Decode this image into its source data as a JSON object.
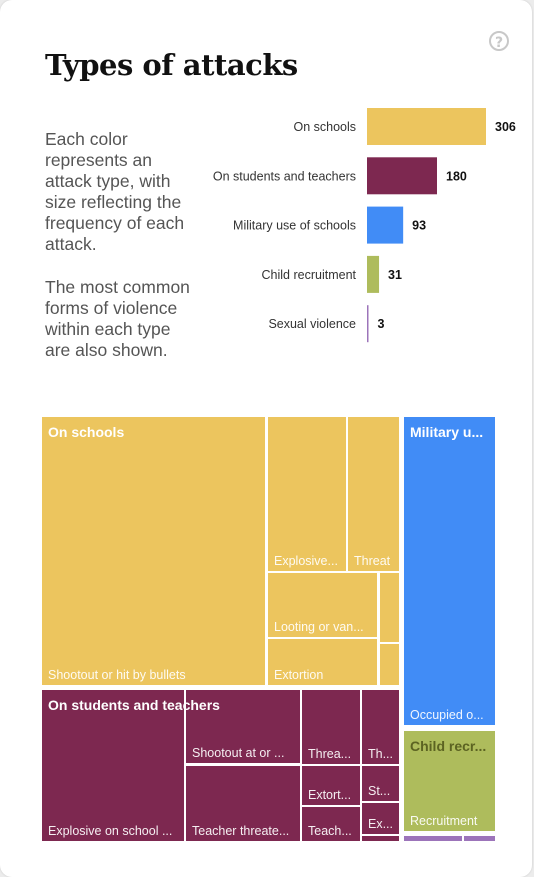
{
  "header": {
    "title": "Types of attacks",
    "help_icon": "question-circle-icon",
    "help_glyph": "?"
  },
  "description": {
    "paragraph1": "Each color represents an attack type, with size reflecting the frequency of each attack.",
    "paragraph2": "The most common forms of violence within each type are also shown."
  },
  "colors": {
    "on_schools": "#ecc55e",
    "on_students_and_teachers": "#7d2850",
    "military_use": "#418cf6",
    "child_recruitment": "#aebc5c",
    "sexual_violence": "#9c74ba"
  },
  "chart_data": [
    {
      "type": "bar",
      "orientation": "horizontal",
      "categories": [
        "On schools",
        "On students and teachers",
        "Military use of schools",
        "Child recruitment",
        "Sexual violence"
      ],
      "values": [
        306,
        180,
        93,
        31,
        3
      ],
      "data_labels": [
        "306",
        "180",
        "93",
        "31",
        "3"
      ]
    },
    {
      "type": "treemap",
      "groups": [
        {
          "name": "On schools",
          "children": [
            {
              "label": "Shootout or hit by bullets"
            },
            {
              "label": "Explosive..."
            },
            {
              "label": "Threat"
            },
            {
              "label": "Looting or van..."
            },
            {
              "label": "Extortion"
            },
            {
              "label": ""
            },
            {
              "label": ""
            },
            {
              "label": ""
            }
          ]
        },
        {
          "name": "On students and teachers",
          "children": [
            {
              "label": "Explosive on school ..."
            },
            {
              "label": "Shootout at or ..."
            },
            {
              "label": "Teacher threate..."
            },
            {
              "label": "Threa..."
            },
            {
              "label": "Extort..."
            },
            {
              "label": "Teach..."
            },
            {
              "label": "Th..."
            },
            {
              "label": "St..."
            },
            {
              "label": "Ex..."
            },
            {
              "label": ""
            }
          ]
        },
        {
          "name": "Military u...",
          "children": [
            {
              "label": "Occupied o..."
            }
          ]
        },
        {
          "name": "Child recr...",
          "children": [
            {
              "label": "Recruitment"
            }
          ]
        },
        {
          "name": "",
          "children": [
            {
              "label": ""
            },
            {
              "label": ""
            }
          ]
        }
      ]
    }
  ]
}
